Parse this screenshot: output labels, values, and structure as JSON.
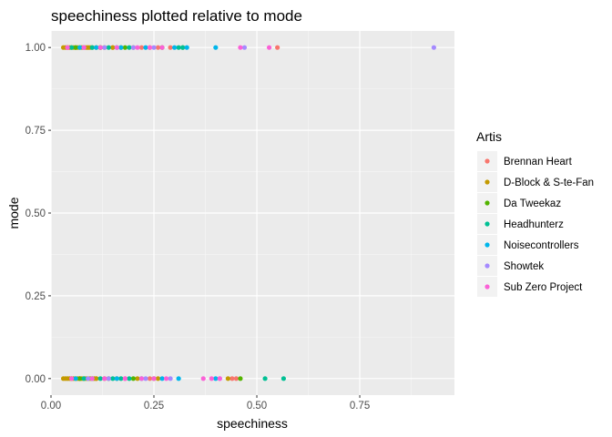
{
  "chart_data": {
    "type": "scatter",
    "title": "speechiness plotted relative to mode",
    "xlabel": "speechiness",
    "ylabel": "mode",
    "xlim": [
      0.0,
      0.98
    ],
    "ylim": [
      -0.05,
      1.05
    ],
    "x_ticks": [
      0.0,
      0.25,
      0.5,
      0.75
    ],
    "x_tick_labels": [
      "0.00",
      "0.25",
      "0.50",
      "0.75"
    ],
    "y_ticks": [
      0.0,
      0.25,
      0.5,
      0.75,
      1.0
    ],
    "y_tick_labels": [
      "0.00",
      "0.25",
      "0.50",
      "0.75",
      "1.00"
    ],
    "grid": true,
    "legend": {
      "title": "Artis",
      "placement": "right"
    },
    "series": [
      {
        "name": "Brennan Heart",
        "color": "#F8766D",
        "points": [
          [
            0.04,
            1
          ],
          [
            0.09,
            1
          ],
          [
            0.15,
            1
          ],
          [
            0.22,
            1
          ],
          [
            0.26,
            1
          ],
          [
            0.29,
            1
          ],
          [
            0.55,
            1
          ],
          [
            0.05,
            0
          ],
          [
            0.11,
            0
          ],
          [
            0.18,
            0
          ],
          [
            0.24,
            0
          ],
          [
            0.44,
            0
          ],
          [
            0.45,
            0
          ]
        ]
      },
      {
        "name": "D-Block & S-te-Fan",
        "color": "#C49A00",
        "points": [
          [
            0.03,
            1
          ],
          [
            0.035,
            1
          ],
          [
            0.04,
            1
          ],
          [
            0.045,
            1
          ],
          [
            0.05,
            1
          ],
          [
            0.055,
            1
          ],
          [
            0.06,
            1
          ],
          [
            0.065,
            1
          ],
          [
            0.07,
            1
          ],
          [
            0.075,
            1
          ],
          [
            0.08,
            1
          ],
          [
            0.085,
            1
          ],
          [
            0.09,
            1
          ],
          [
            0.095,
            1
          ],
          [
            0.1,
            1
          ],
          [
            0.11,
            1
          ],
          [
            0.12,
            1
          ],
          [
            0.13,
            1
          ],
          [
            0.15,
            1
          ],
          [
            0.17,
            1
          ],
          [
            0.2,
            1
          ],
          [
            0.24,
            1
          ],
          [
            0.32,
            1
          ],
          [
            0.03,
            0
          ],
          [
            0.035,
            0
          ],
          [
            0.04,
            0
          ],
          [
            0.045,
            0
          ],
          [
            0.05,
            0
          ],
          [
            0.055,
            0
          ],
          [
            0.06,
            0
          ],
          [
            0.065,
            0
          ],
          [
            0.07,
            0
          ],
          [
            0.075,
            0
          ],
          [
            0.08,
            0
          ],
          [
            0.085,
            0
          ],
          [
            0.09,
            0
          ],
          [
            0.095,
            0
          ],
          [
            0.1,
            0
          ],
          [
            0.105,
            0
          ],
          [
            0.11,
            0
          ],
          [
            0.13,
            0
          ],
          [
            0.16,
            0
          ],
          [
            0.21,
            0
          ],
          [
            0.26,
            0
          ],
          [
            0.43,
            0
          ]
        ]
      },
      {
        "name": "Da Tweekaz",
        "color": "#53B400",
        "points": [
          [
            0.06,
            1
          ],
          [
            0.12,
            1
          ],
          [
            0.18,
            1
          ],
          [
            0.27,
            1
          ],
          [
            0.07,
            0
          ],
          [
            0.14,
            0
          ],
          [
            0.2,
            0
          ],
          [
            0.25,
            0
          ],
          [
            0.46,
            0
          ]
        ]
      },
      {
        "name": "Headhunterz",
        "color": "#00C094",
        "points": [
          [
            0.05,
            1
          ],
          [
            0.1,
            1
          ],
          [
            0.14,
            1
          ],
          [
            0.16,
            1
          ],
          [
            0.19,
            1
          ],
          [
            0.31,
            1
          ],
          [
            0.32,
            1
          ],
          [
            0.08,
            0
          ],
          [
            0.12,
            0
          ],
          [
            0.15,
            0
          ],
          [
            0.17,
            0
          ],
          [
            0.19,
            0
          ],
          [
            0.52,
            0
          ],
          [
            0.565,
            0
          ]
        ]
      },
      {
        "name": "Noisecontrollers",
        "color": "#00B6EB",
        "points": [
          [
            0.07,
            1
          ],
          [
            0.11,
            1
          ],
          [
            0.17,
            1
          ],
          [
            0.23,
            1
          ],
          [
            0.3,
            1
          ],
          [
            0.33,
            1
          ],
          [
            0.4,
            1
          ],
          [
            0.06,
            0
          ],
          [
            0.1,
            0
          ],
          [
            0.16,
            0
          ],
          [
            0.22,
            0
          ],
          [
            0.27,
            0
          ],
          [
            0.31,
            0
          ],
          [
            0.4,
            0
          ]
        ]
      },
      {
        "name": "Showtek",
        "color": "#A58AFF",
        "points": [
          [
            0.08,
            1
          ],
          [
            0.13,
            1
          ],
          [
            0.2,
            1
          ],
          [
            0.25,
            1
          ],
          [
            0.47,
            1
          ],
          [
            0.93,
            1
          ],
          [
            0.09,
            0
          ],
          [
            0.14,
            0
          ],
          [
            0.23,
            0
          ],
          [
            0.29,
            0
          ],
          [
            0.41,
            0
          ]
        ]
      },
      {
        "name": "Sub Zero Project",
        "color": "#FB61D7",
        "points": [
          [
            0.04,
            1
          ],
          [
            0.08,
            1
          ],
          [
            0.12,
            1
          ],
          [
            0.16,
            1
          ],
          [
            0.21,
            1
          ],
          [
            0.24,
            1
          ],
          [
            0.27,
            1
          ],
          [
            0.46,
            1
          ],
          [
            0.53,
            1
          ],
          [
            0.05,
            0
          ],
          [
            0.1,
            0
          ],
          [
            0.13,
            0
          ],
          [
            0.18,
            0
          ],
          [
            0.22,
            0
          ],
          [
            0.25,
            0
          ],
          [
            0.28,
            0
          ],
          [
            0.37,
            0
          ],
          [
            0.39,
            0
          ],
          [
            0.41,
            0
          ]
        ]
      }
    ]
  }
}
